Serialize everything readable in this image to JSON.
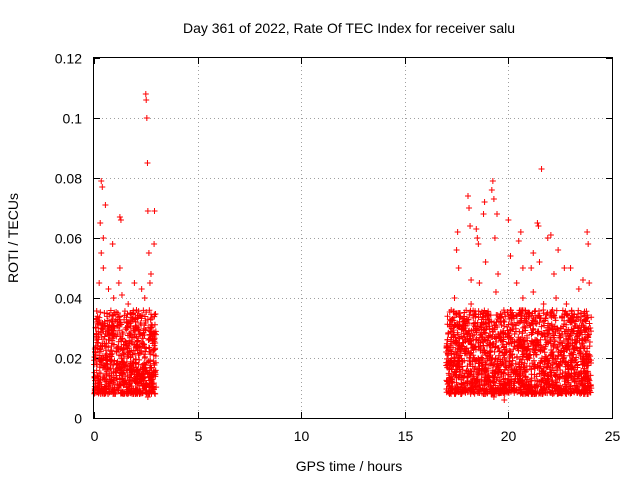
{
  "chart_data": {
    "type": "scatter",
    "title": "Day 361 of 2022, Rate Of TEC Index for receiver salu",
    "xlabel": "GPS time / hours",
    "ylabel": "ROTI / TECUs",
    "xlim": [
      0,
      25
    ],
    "ylim": [
      0,
      0.12
    ],
    "xticks": [
      0,
      5,
      10,
      15,
      20,
      25
    ],
    "xtick_labels": [
      "0",
      "5",
      "10",
      "15",
      "20",
      "25"
    ],
    "yticks": [
      0,
      0.02,
      0.04,
      0.06,
      0.08,
      0.1,
      0.12
    ],
    "ytick_labels": [
      "0",
      "0.02",
      "0.04",
      "0.06",
      "0.08",
      "0.1",
      "0.12"
    ],
    "grid": true,
    "marker": "+",
    "color": "#ff0000",
    "series": [
      {
        "name": "ROTI",
        "points": [
          [
            0.05,
            0.022
          ],
          [
            0.1,
            0.03
          ],
          [
            0.15,
            0.018
          ],
          [
            0.2,
            0.025
          ],
          [
            0.25,
            0.045
          ],
          [
            0.3,
            0.065
          ],
          [
            0.35,
            0.079
          ],
          [
            0.4,
            0.077
          ],
          [
            0.45,
            0.05
          ],
          [
            0.5,
            0.035
          ],
          [
            0.55,
            0.028
          ],
          [
            0.6,
            0.012
          ],
          [
            0.65,
            0.02
          ],
          [
            0.7,
            0.026
          ],
          [
            0.75,
            0.031
          ],
          [
            0.8,
            0.019
          ],
          [
            0.85,
            0.024
          ],
          [
            0.9,
            0.058
          ],
          [
            0.95,
            0.04
          ],
          [
            1.0,
            0.03
          ],
          [
            1.05,
            0.016
          ],
          [
            1.1,
            0.022
          ],
          [
            1.15,
            0.035
          ],
          [
            1.2,
            0.045
          ],
          [
            1.25,
            0.067
          ],
          [
            1.3,
            0.066
          ],
          [
            1.35,
            0.041
          ],
          [
            1.4,
            0.028
          ],
          [
            1.45,
            0.02
          ],
          [
            1.5,
            0.014
          ],
          [
            1.55,
            0.025
          ],
          [
            1.6,
            0.03
          ],
          [
            1.65,
            0.038
          ],
          [
            1.7,
            0.022
          ],
          [
            1.75,
            0.018
          ],
          [
            1.8,
            0.027
          ],
          [
            1.85,
            0.033
          ],
          [
            1.9,
            0.019
          ],
          [
            1.95,
            0.045
          ],
          [
            2.0,
            0.03
          ],
          [
            2.05,
            0.024
          ],
          [
            2.1,
            0.016
          ],
          [
            2.15,
            0.021
          ],
          [
            2.2,
            0.028
          ],
          [
            2.25,
            0.034
          ],
          [
            2.3,
            0.043
          ],
          [
            2.35,
            0.024
          ],
          [
            2.4,
            0.012
          ],
          [
            2.45,
            0.02
          ],
          [
            2.5,
            0.108
          ],
          [
            2.52,
            0.106
          ],
          [
            2.55,
            0.1
          ],
          [
            2.58,
            0.085
          ],
          [
            2.6,
            0.069
          ],
          [
            2.65,
            0.055
          ],
          [
            2.7,
            0.045
          ],
          [
            2.75,
            0.03
          ],
          [
            2.8,
            0.022
          ],
          [
            2.85,
            0.015
          ],
          [
            2.9,
            0.058
          ],
          [
            2.92,
            0.069
          ],
          [
            2.95,
            0.025
          ],
          [
            0.2,
            0.012
          ],
          [
            0.6,
            0.009
          ],
          [
            1.0,
            0.011
          ],
          [
            1.4,
            0.008
          ],
          [
            1.8,
            0.01
          ],
          [
            2.2,
            0.009
          ],
          [
            2.6,
            0.007
          ],
          [
            0.35,
            0.055
          ],
          [
            0.45,
            0.06
          ],
          [
            0.55,
            0.071
          ],
          [
            1.75,
            0.015
          ],
          [
            0.15,
            0.032
          ],
          [
            0.85,
            0.014
          ],
          [
            1.25,
            0.05
          ],
          [
            2.05,
            0.036
          ],
          [
            2.45,
            0.04
          ],
          [
            2.75,
            0.048
          ],
          [
            0.7,
            0.043
          ],
          [
            17.0,
            0.022
          ],
          [
            17.1,
            0.028
          ],
          [
            17.2,
            0.018
          ],
          [
            17.3,
            0.033
          ],
          [
            17.4,
            0.04
          ],
          [
            17.5,
            0.056
          ],
          [
            17.55,
            0.062
          ],
          [
            17.6,
            0.05
          ],
          [
            17.7,
            0.024
          ],
          [
            17.8,
            0.016
          ],
          [
            17.9,
            0.03
          ],
          [
            18.0,
            0.021
          ],
          [
            18.05,
            0.074
          ],
          [
            18.1,
            0.07
          ],
          [
            18.15,
            0.064
          ],
          [
            18.2,
            0.038
          ],
          [
            18.3,
            0.026
          ],
          [
            18.4,
            0.019
          ],
          [
            18.5,
            0.06
          ],
          [
            18.55,
            0.058
          ],
          [
            18.6,
            0.045
          ],
          [
            18.7,
            0.03
          ],
          [
            18.8,
            0.068
          ],
          [
            18.85,
            0.072
          ],
          [
            18.9,
            0.035
          ],
          [
            19.0,
            0.014
          ],
          [
            19.1,
            0.025
          ],
          [
            19.2,
            0.076
          ],
          [
            19.25,
            0.079
          ],
          [
            19.3,
            0.073
          ],
          [
            19.35,
            0.06
          ],
          [
            19.4,
            0.042
          ],
          [
            19.5,
            0.028
          ],
          [
            19.6,
            0.018
          ],
          [
            19.7,
            0.01
          ],
          [
            19.8,
            0.032
          ],
          [
            19.9,
            0.022
          ],
          [
            20.0,
            0.066
          ],
          [
            20.1,
            0.036
          ],
          [
            20.2,
            0.02
          ],
          [
            20.3,
            0.028
          ],
          [
            20.4,
            0.045
          ],
          [
            20.5,
            0.059
          ],
          [
            20.6,
            0.062
          ],
          [
            20.7,
            0.04
          ],
          [
            20.8,
            0.026
          ],
          [
            20.9,
            0.016
          ],
          [
            21.0,
            0.031
          ],
          [
            21.1,
            0.05
          ],
          [
            21.2,
            0.042
          ],
          [
            21.3,
            0.024
          ],
          [
            21.4,
            0.065
          ],
          [
            21.45,
            0.064
          ],
          [
            21.5,
            0.052
          ],
          [
            21.6,
            0.083
          ],
          [
            21.7,
            0.038
          ],
          [
            21.8,
            0.026
          ],
          [
            21.9,
            0.017
          ],
          [
            22.0,
            0.011
          ],
          [
            22.1,
            0.03
          ],
          [
            22.2,
            0.048
          ],
          [
            22.3,
            0.04
          ],
          [
            22.4,
            0.022
          ],
          [
            22.5,
            0.016
          ],
          [
            22.6,
            0.028
          ],
          [
            22.7,
            0.05
          ],
          [
            22.8,
            0.038
          ],
          [
            22.9,
            0.024
          ],
          [
            23.0,
            0.033
          ],
          [
            23.1,
            0.02
          ],
          [
            23.2,
            0.015
          ],
          [
            23.3,
            0.028
          ],
          [
            23.4,
            0.043
          ],
          [
            23.5,
            0.035
          ],
          [
            23.6,
            0.024
          ],
          [
            23.7,
            0.018
          ],
          [
            23.8,
            0.062
          ],
          [
            23.85,
            0.058
          ],
          [
            23.9,
            0.045
          ],
          [
            23.95,
            0.03
          ],
          [
            17.3,
            0.012
          ],
          [
            17.8,
            0.009
          ],
          [
            18.3,
            0.011
          ],
          [
            18.8,
            0.008
          ],
          [
            19.3,
            0.007
          ],
          [
            19.8,
            0.006
          ],
          [
            20.3,
            0.01
          ],
          [
            20.8,
            0.011
          ],
          [
            21.3,
            0.009
          ],
          [
            21.8,
            0.012
          ],
          [
            22.3,
            0.01
          ],
          [
            22.8,
            0.008
          ],
          [
            23.3,
            0.012
          ],
          [
            23.8,
            0.015
          ],
          [
            17.6,
            0.035
          ],
          [
            18.2,
            0.046
          ],
          [
            18.9,
            0.052
          ],
          [
            19.5,
            0.048
          ],
          [
            20.1,
            0.054
          ],
          [
            20.7,
            0.05
          ],
          [
            21.2,
            0.055
          ],
          [
            21.9,
            0.06
          ],
          [
            22.4,
            0.056
          ],
          [
            23.0,
            0.05
          ],
          [
            23.6,
            0.046
          ],
          [
            19.45,
            0.068
          ],
          [
            18.45,
            0.063
          ],
          [
            22.05,
            0.061
          ]
        ]
      }
    ]
  }
}
